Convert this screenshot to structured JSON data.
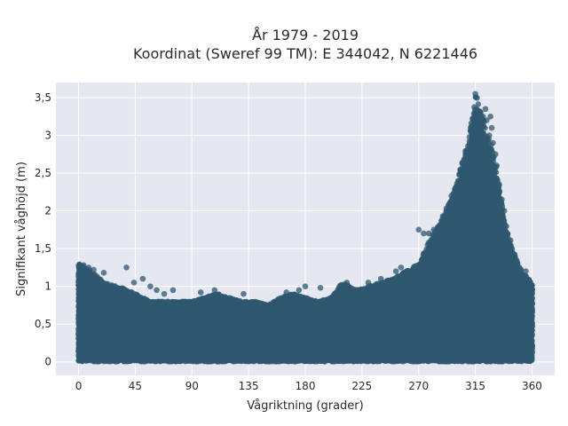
{
  "chart_data": {
    "type": "scatter",
    "title_lines": [
      "År 1979 - 2019",
      "Koordinat (Sweref 99 TM): E 344042, N 6221446"
    ],
    "xlabel": "Vågriktning (grader)",
    "ylabel": "Signifikant våghöjd (m)",
    "xlim": [
      -18,
      378
    ],
    "ylim": [
      -0.18,
      3.7
    ],
    "x_ticks": [
      0,
      45,
      90,
      135,
      180,
      225,
      270,
      315,
      360
    ],
    "x_tick_labels": [
      "0",
      "45",
      "90",
      "135",
      "180",
      "225",
      "270",
      "315",
      "360"
    ],
    "y_ticks": [
      0,
      0.5,
      1,
      1.5,
      2,
      2.5,
      3,
      3.5
    ],
    "y_tick_labels": [
      "0",
      "0,5",
      "1",
      "1,5",
      "2",
      "2,5",
      "3",
      "3,5"
    ],
    "grid": true,
    "legend": "none",
    "marker_color": "#2f5870",
    "background_color": "#e5e8f0",
    "series": [
      {
        "x": [
          0,
          10,
          20,
          30,
          40,
          50,
          60,
          70,
          80,
          90,
          100,
          110,
          120,
          130,
          140,
          150,
          160,
          170,
          180,
          190,
          200,
          210,
          220,
          230,
          240,
          250,
          260,
          270,
          280,
          290,
          300,
          310,
          315,
          320,
          325,
          330,
          340,
          350,
          360
        ],
        "y_max": [
          1.3,
          1.2,
          1.05,
          1.0,
          0.95,
          0.85,
          0.8,
          0.8,
          0.8,
          0.8,
          0.85,
          0.9,
          0.85,
          0.8,
          0.8,
          0.75,
          0.85,
          0.9,
          0.85,
          0.8,
          0.85,
          1.05,
          0.95,
          1.0,
          1.05,
          1.1,
          1.2,
          1.3,
          1.65,
          1.95,
          2.35,
          2.95,
          3.55,
          3.3,
          3.0,
          2.7,
          1.75,
          1.25,
          1.05
        ],
        "y_min": 0.02
      },
      {
        "x": [
          4,
          8,
          12,
          20,
          38,
          44,
          51,
          57,
          62,
          68,
          75,
          97,
          108,
          131,
          165,
          175,
          180,
          192,
          213,
          230,
          240,
          252,
          256,
          270,
          274,
          278,
          282,
          290,
          292,
          296,
          299,
          302,
          305,
          308,
          311,
          313,
          314,
          315,
          316,
          317,
          318,
          319,
          320,
          321,
          322,
          323,
          324,
          326,
          327,
          328,
          329,
          331,
          332,
          334,
          336,
          338,
          340,
          345,
          350,
          355,
          358
        ],
        "y": [
          1.28,
          1.25,
          1.22,
          1.18,
          1.25,
          1.05,
          1.1,
          1.0,
          0.95,
          0.9,
          0.95,
          0.92,
          0.95,
          0.9,
          0.92,
          0.95,
          1.0,
          0.98,
          1.05,
          1.05,
          1.1,
          1.2,
          1.25,
          1.75,
          1.7,
          1.7,
          1.75,
          1.9,
          2.0,
          2.2,
          2.3,
          2.4,
          2.45,
          2.8,
          2.9,
          3.0,
          3.1,
          3.55,
          3.35,
          3.2,
          3.3,
          3.05,
          3.15,
          3.25,
          2.95,
          3.35,
          3.2,
          3.0,
          3.25,
          3.1,
          2.9,
          2.75,
          2.6,
          2.35,
          2.15,
          2.0,
          1.7,
          1.4,
          1.25,
          1.2,
          1.05
        ]
      }
    ]
  }
}
